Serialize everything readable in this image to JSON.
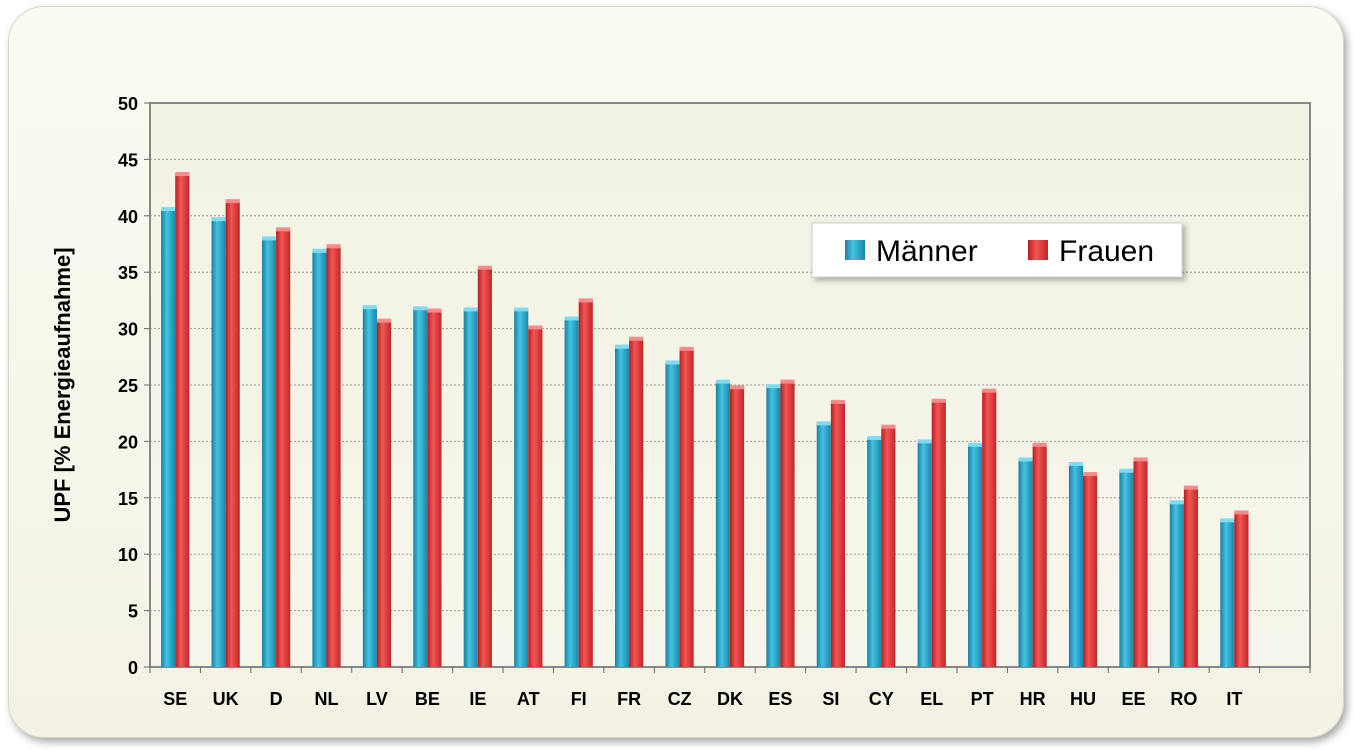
{
  "chart_data": {
    "type": "bar",
    "ylabel": "UPF  [% Energieaufnahme]",
    "ylim": [
      0,
      50
    ],
    "yticks": [
      0,
      5,
      10,
      15,
      20,
      25,
      30,
      35,
      40,
      45,
      50
    ],
    "grid": true,
    "legend_position": "top-right",
    "categories": [
      "SE",
      "UK",
      "D",
      "NL",
      "LV",
      "BE",
      "IE",
      "AT",
      "FI",
      "FR",
      "CZ",
      "DK",
      "ES",
      "SI",
      "CY",
      "EL",
      "PT",
      "HR",
      "HU",
      "EE",
      "RO",
      "IT"
    ],
    "series": [
      {
        "name": "Männer",
        "color": "#2aa6c8",
        "values": [
          40.6,
          39.7,
          38.0,
          36.9,
          31.9,
          31.8,
          31.7,
          31.7,
          30.9,
          28.4,
          27.0,
          25.3,
          24.9,
          21.6,
          20.3,
          20.0,
          19.7,
          18.4,
          18.0,
          17.4,
          14.6,
          13.0
        ]
      },
      {
        "name": "Frauen",
        "color": "#e03a3a",
        "values": [
          43.7,
          41.3,
          38.8,
          37.3,
          30.7,
          31.6,
          35.4,
          30.1,
          32.5,
          29.1,
          28.2,
          24.8,
          25.3,
          23.5,
          21.3,
          23.6,
          24.5,
          19.7,
          17.1,
          18.4,
          15.9,
          13.7
        ]
      }
    ]
  }
}
